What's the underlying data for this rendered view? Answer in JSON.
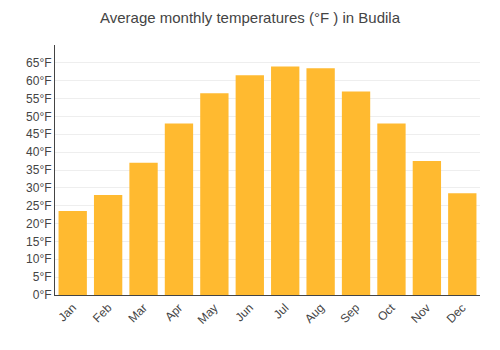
{
  "chart_data": {
    "type": "bar",
    "title": "Average monthly temperatures (°F ) in Budila",
    "categories": [
      "Jan",
      "Feb",
      "Mar",
      "Apr",
      "May",
      "Jun",
      "Jul",
      "Aug",
      "Sep",
      "Oct",
      "Nov",
      "Dec"
    ],
    "values": [
      23.5,
      28.0,
      37.0,
      48.0,
      56.5,
      61.5,
      64.0,
      63.5,
      57.0,
      48.0,
      37.5,
      28.5
    ],
    "color": "#FFBA30",
    "ylim": [
      0,
      70
    ],
    "yticks": [
      {
        "value": 0,
        "label": "0°F"
      },
      {
        "value": 5,
        "label": "5°F"
      },
      {
        "value": 10,
        "label": "10°F"
      },
      {
        "value": 15,
        "label": "15°F"
      },
      {
        "value": 20,
        "label": "20°F"
      },
      {
        "value": 25,
        "label": "25°F"
      },
      {
        "value": 30,
        "label": "30°F"
      },
      {
        "value": 35,
        "label": "35°F"
      },
      {
        "value": 40,
        "label": "40°F"
      },
      {
        "value": 45,
        "label": "45°F"
      },
      {
        "value": 50,
        "label": "50°F"
      },
      {
        "value": 55,
        "label": "55°F"
      },
      {
        "value": 60,
        "label": "60°F"
      },
      {
        "value": 65,
        "label": "65°F"
      }
    ],
    "grid": true
  }
}
